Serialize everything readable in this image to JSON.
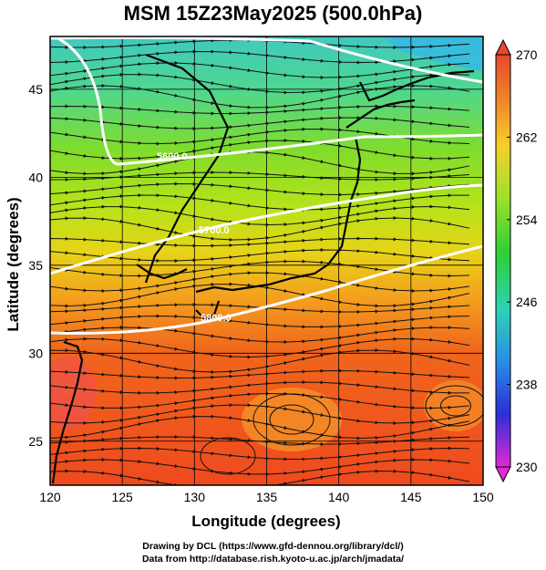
{
  "title": "MSM 15Z23May2025 (500.0hPa)",
  "axes": {
    "xlabel": "Longitude (degrees)",
    "ylabel": "Latitude (degrees)",
    "xticks": [
      "120",
      "125",
      "130",
      "135",
      "140",
      "145",
      "150"
    ],
    "yticks": [
      "25",
      "30",
      "35",
      "40",
      "45"
    ]
  },
  "colorbar": {
    "labels": [
      "270",
      "262",
      "254",
      "246",
      "238",
      "230"
    ],
    "min": 230,
    "max": 270
  },
  "contours": [
    "5600.0",
    "5700.0",
    "5800.0"
  ],
  "footer": {
    "line1": "Drawing by DCL (https://www.gfd-dennou.org/library/dcl/)",
    "line2": "Data from http://database.rish.kyoto-u.ac.jp/arch/jmadata/"
  },
  "chart_data": {
    "type": "heatmap",
    "variable_range": [
      230,
      270
    ],
    "lon_range": [
      120,
      150
    ],
    "lat_range": [
      22.5,
      48
    ],
    "temperature_field_by_latitude": [
      {
        "lat": 47,
        "value": 252
      },
      {
        "lat": 44,
        "value": 256
      },
      {
        "lat": 41,
        "value": 258
      },
      {
        "lat": 38,
        "value": 260
      },
      {
        "lat": 35,
        "value": 262
      },
      {
        "lat": 32,
        "value": 265
      },
      {
        "lat": 28,
        "value": 267
      },
      {
        "lat": 25,
        "value": 267
      }
    ],
    "contour_levels": [
      "5600.0",
      "5700.0",
      "5800.0"
    ]
  }
}
